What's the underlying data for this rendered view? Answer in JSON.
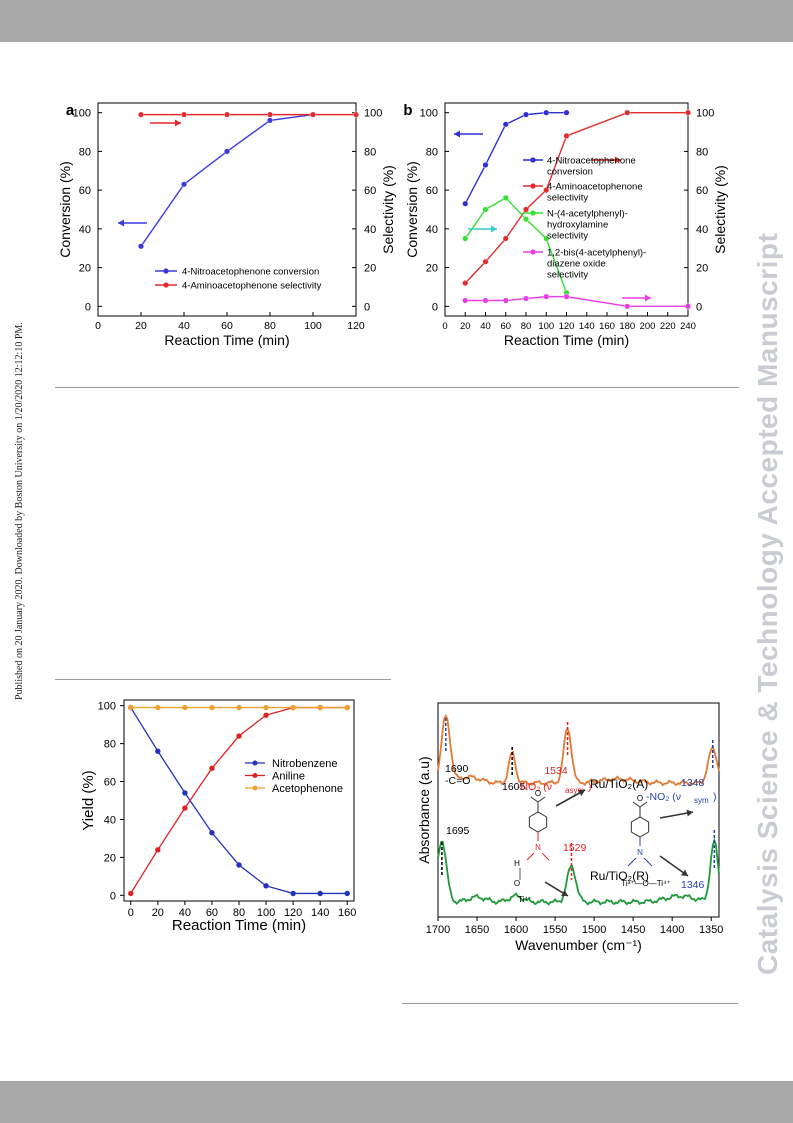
{
  "header": {
    "bg_color": "#a9a9a9"
  },
  "footer": {
    "bg_color": "#a9a9a9"
  },
  "side_note": "Published on 20 January 2020. Downloaded by Boston University on 1/20/2020 12:12:10 PM.",
  "watermark": "Catalysis Science & Technology Accepted Manuscript",
  "chart_data": [
    {
      "type": "line",
      "panel_label": "a",
      "xlabel": "Reaction Time (min)",
      "ylabel": "Conversion (%)",
      "y2label": "Selectivity (%)",
      "xlim": [
        0,
        120
      ],
      "ylim": [
        -5,
        105
      ],
      "x_ticks": [
        "0",
        "20",
        "40",
        "60",
        "80",
        "100",
        "120"
      ],
      "y_ticks": [
        "0",
        "20",
        "40",
        "60",
        "80",
        "100"
      ],
      "y2_ticks": [
        "0",
        "20",
        "40",
        "60",
        "80",
        "100"
      ],
      "legend_position": "bottom-right",
      "series": [
        {
          "name": "4-Nitroacetophenone conversion",
          "color": "#3b3bdc",
          "x": [
            20,
            40,
            60,
            80,
            100
          ],
          "values": [
            31,
            63,
            80,
            96,
            99
          ]
        },
        {
          "name": "4-Aminoacetophenone selectivity",
          "color": "#e02c2c",
          "x": [
            20,
            40,
            60,
            80,
            100,
            120
          ],
          "values": [
            99,
            99,
            99,
            99,
            99,
            99
          ]
        }
      ]
    },
    {
      "type": "line",
      "panel_label": "b",
      "xlabel": "Reaction Time (min)",
      "ylabel": "Conversion (%)",
      "y2label": "Selectivity (%)",
      "xlim": [
        0,
        240
      ],
      "ylim": [
        -5,
        105
      ],
      "x_ticks": [
        "0",
        "20",
        "40",
        "60",
        "80",
        "100",
        "120",
        "140",
        "160",
        "180",
        "200",
        "220",
        "240"
      ],
      "y_ticks": [
        "0",
        "20",
        "40",
        "60",
        "80",
        "100"
      ],
      "y2_ticks": [
        "0",
        "20",
        "40",
        "60",
        "80",
        "100"
      ],
      "legend_position": "right",
      "series": [
        {
          "name": "4-Nitroacetophenone conversion",
          "color": "#2f2fd6",
          "x": [
            20,
            40,
            60,
            80,
            100,
            120
          ],
          "values": [
            53,
            73,
            94,
            99,
            100,
            100
          ]
        },
        {
          "name": "4-Aminoacetophenone selectivity",
          "color": "#e02c2c",
          "x": [
            20,
            40,
            60,
            80,
            100,
            120,
            180,
            240
          ],
          "values": [
            12,
            23,
            35,
            50,
            60,
            88,
            100,
            100
          ]
        },
        {
          "name": "N-(4-acetylphenyl)-hydroxylamine selectivity",
          "color": "#33e033",
          "x": [
            20,
            40,
            60,
            80,
            100,
            120
          ],
          "values": [
            35,
            50,
            56,
            45,
            35,
            7
          ]
        },
        {
          "name": "1,2-bis(4-acetylphenyl)-diazene oxide selectivity",
          "color": "#e83ce8",
          "x": [
            20,
            40,
            60,
            80,
            100,
            120,
            180,
            240
          ],
          "values": [
            3,
            3,
            3,
            4,
            5,
            5,
            0,
            0
          ]
        }
      ]
    },
    {
      "type": "line",
      "xlabel": "Reaction Time (min)",
      "ylabel": "Yield (%)",
      "xlim": [
        -5,
        165
      ],
      "ylim": [
        -3,
        103
      ],
      "x_ticks": [
        "0",
        "20",
        "40",
        "60",
        "80",
        "100",
        "120",
        "140",
        "160"
      ],
      "y_ticks": [
        "0",
        "20",
        "40",
        "60",
        "80",
        "100"
      ],
      "legend_position": "right",
      "series": [
        {
          "name": "Nitrobenzene",
          "color": "#2233bb",
          "x": [
            0,
            20,
            40,
            60,
            80,
            100,
            120,
            140,
            160
          ],
          "values": [
            99,
            76,
            54,
            33,
            16,
            5,
            1,
            1,
            1
          ]
        },
        {
          "name": "Aniline",
          "color": "#dd2222",
          "x": [
            0,
            20,
            40,
            60,
            80,
            100,
            120,
            140,
            160
          ],
          "values": [
            1,
            24,
            46,
            67,
            84,
            95,
            99,
            99,
            99
          ]
        },
        {
          "name": "Acetophenone",
          "color": "#f0a030",
          "x": [
            0,
            20,
            40,
            60,
            80,
            100,
            120,
            140,
            160
          ],
          "values": [
            99,
            99,
            99,
            99,
            99,
            99,
            99,
            99,
            99
          ]
        }
      ]
    },
    {
      "type": "line",
      "xlabel": "Wavenumber (cm⁻¹)",
      "ylabel": "Absorbance (a.u)",
      "xlim": [
        1700,
        1340
      ],
      "x_ticks": [
        "1700",
        "1650",
        "1600",
        "1550",
        "1500",
        "1450",
        "1400",
        "1350"
      ],
      "series": [
        {
          "name": "Ru/TiO₂(A)",
          "color": "#e27a35"
        },
        {
          "name": "Ru/TiO₂(R)",
          "color": "#1f9a3a"
        }
      ],
      "annotations": {
        "a_1690": "1690",
        "a_co": "-C=O",
        "a_1605": "1605",
        "a_1534": "1534",
        "a_no2asym": "-NO₂ (ν",
        "a_asym_sub": "asym",
        "a_close": ")",
        "a_1348": "1348",
        "a_no2sym": "-NO₂ (ν",
        "a_sym_sub": "sym",
        "a_1695": "1695",
        "a_1529": "1529",
        "a_1346": "1346",
        "ti_left": "Ti⁴⁺",
        "h_label": "H",
        "o_label": "O",
        "n_label": "N",
        "ti_right": "Ti³⁺—O—Ti⁴⁺"
      }
    }
  ]
}
